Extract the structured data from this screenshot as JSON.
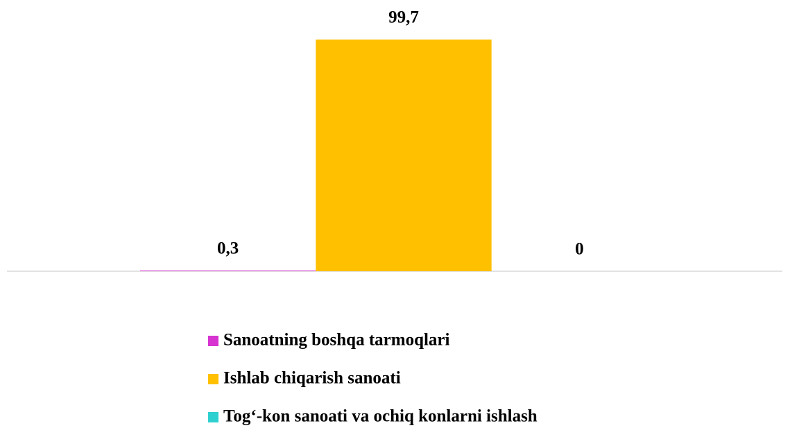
{
  "chart_data": {
    "type": "bar",
    "categories": [
      null
    ],
    "series": [
      {
        "name": "Sanoatning boshqa tarmoqlari",
        "color": "#d633d0",
        "values": [
          0.3
        ],
        "value_labels": [
          "0,3"
        ]
      },
      {
        "name": "Ishlab chiqarish sanoati",
        "color": "#ffc000",
        "values": [
          99.7
        ],
        "value_labels": [
          "99,7"
        ]
      },
      {
        "name": "Tog‘-kon sanoati va ochiq konlarni ishlash",
        "color": "#2fd0d0",
        "values": [
          0
        ],
        "value_labels": [
          "0"
        ]
      }
    ],
    "legend": "bottom"
  }
}
